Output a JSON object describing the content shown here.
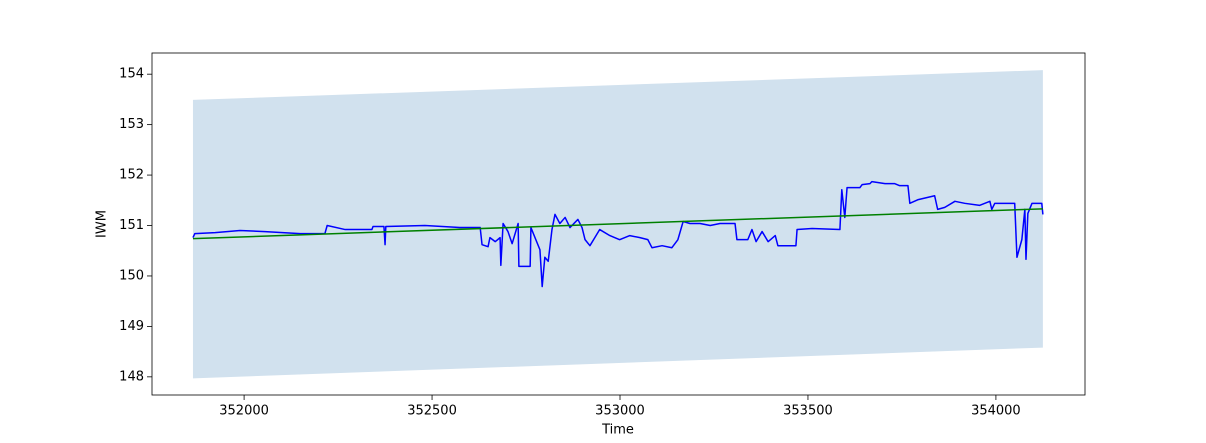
{
  "chart_data": {
    "type": "line",
    "x_label": "Time",
    "y_label": "IWM",
    "xlim": [
      351755,
      354237
    ],
    "ylim": [
      147.64,
      154.42
    ],
    "xticks": [
      352000,
      352500,
      353000,
      353500,
      354000
    ],
    "yticks": [
      148,
      149,
      150,
      151,
      152,
      153,
      154
    ],
    "band": {
      "color": "#d1e1ee",
      "x": [
        351864,
        354125
      ],
      "upper": [
        153.49,
        154.08
      ],
      "lower": [
        147.97,
        148.58
      ]
    },
    "series": [
      {
        "color": "blue",
        "x": [
          351864,
          351869,
          351923,
          351989,
          352056,
          352149,
          352215,
          352221,
          352269,
          352340,
          352343,
          352372,
          352375,
          352377,
          352481,
          352574,
          352628,
          352633,
          352649,
          352654,
          352668,
          352681,
          352683,
          352689,
          352702,
          352713,
          352729,
          352731,
          352761,
          352763,
          352787,
          352793,
          352800,
          352809,
          352819,
          352827,
          352840,
          352854,
          352867,
          352888,
          352899,
          352907,
          352920,
          352933,
          352946,
          352973,
          352999,
          353026,
          353053,
          353074,
          353085,
          353112,
          353138,
          353154,
          353168,
          353186,
          353213,
          353240,
          353266,
          353306,
          353311,
          353340,
          353351,
          353362,
          353378,
          353394,
          353413,
          353420,
          353452,
          353468,
          353471,
          353511,
          353585,
          353590,
          353598,
          353604,
          353638,
          353644,
          353665,
          353670,
          353705,
          353731,
          353744,
          353766,
          353771,
          353792,
          353837,
          353845,
          353864,
          353891,
          353917,
          353957,
          353984,
          353989,
          353997,
          354037,
          354050,
          354056,
          354069,
          354077,
          354080,
          354085,
          354096,
          354122,
          354125
        ],
        "values": [
          150.76,
          150.84,
          150.86,
          150.9,
          150.88,
          150.84,
          150.84,
          151.0,
          150.92,
          150.92,
          150.98,
          150.98,
          150.62,
          150.98,
          151.0,
          150.96,
          150.96,
          150.62,
          150.58,
          150.76,
          150.68,
          150.76,
          150.21,
          151.04,
          150.88,
          150.64,
          151.04,
          150.19,
          150.19,
          150.96,
          150.52,
          149.79,
          150.37,
          150.29,
          150.92,
          151.22,
          151.04,
          151.16,
          150.96,
          151.12,
          150.96,
          150.72,
          150.6,
          150.76,
          150.92,
          150.8,
          150.72,
          150.8,
          150.76,
          150.72,
          150.56,
          150.6,
          150.56,
          150.72,
          151.08,
          151.04,
          151.04,
          151.0,
          151.04,
          151.04,
          150.72,
          150.72,
          150.92,
          150.68,
          150.88,
          150.68,
          150.8,
          150.6,
          150.6,
          150.6,
          150.92,
          150.94,
          150.92,
          151.71,
          151.16,
          151.75,
          151.75,
          151.81,
          151.83,
          151.87,
          151.83,
          151.83,
          151.79,
          151.79,
          151.44,
          151.51,
          151.59,
          151.32,
          151.36,
          151.48,
          151.44,
          151.4,
          151.48,
          151.32,
          151.44,
          151.44,
          151.44,
          150.37,
          150.72,
          151.32,
          150.33,
          151.24,
          151.44,
          151.44,
          151.22
        ]
      },
      {
        "color": "green",
        "x": [
          351864,
          354125
        ],
        "values": [
          150.74,
          151.33
        ]
      }
    ]
  }
}
